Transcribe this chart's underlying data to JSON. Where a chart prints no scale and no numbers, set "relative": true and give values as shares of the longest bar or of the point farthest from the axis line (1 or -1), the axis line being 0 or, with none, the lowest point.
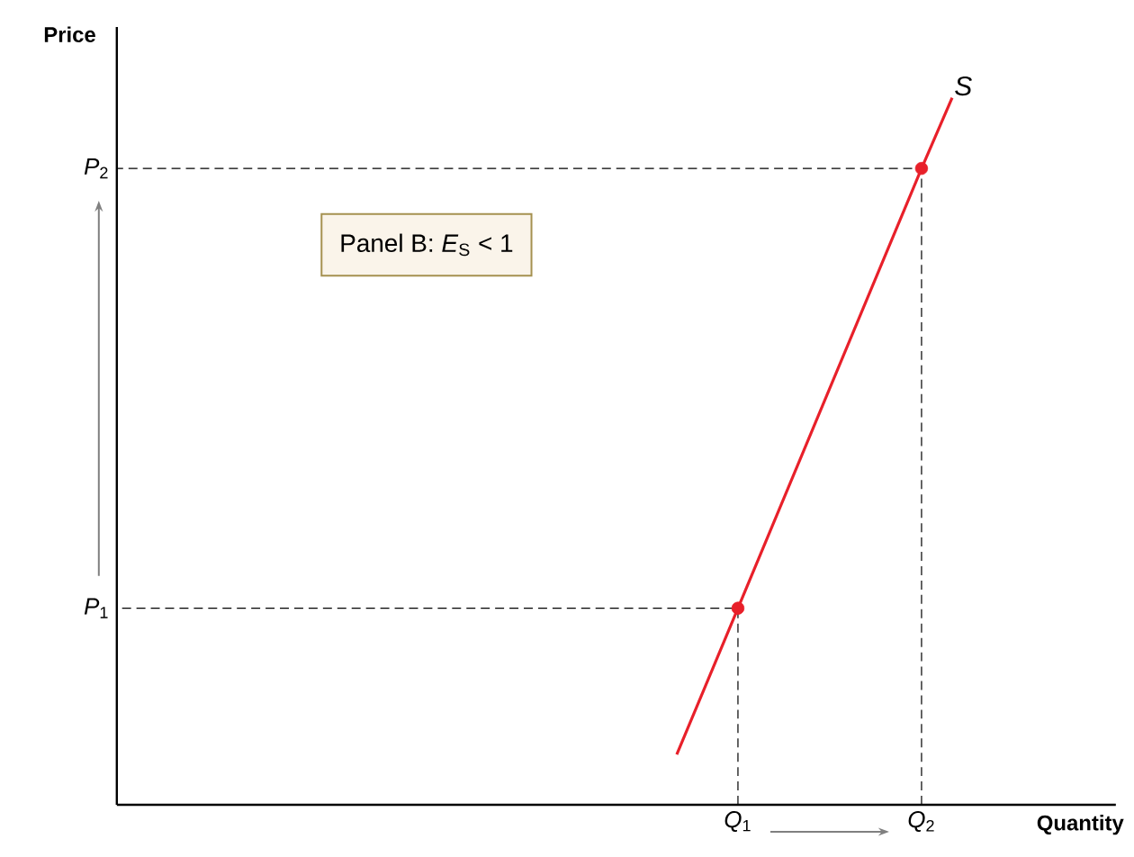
{
  "chart_data": {
    "type": "line",
    "xlabel": "Quantity",
    "ylabel": "Price",
    "relative": true,
    "annotations": [
      "Panel B: *E*$_{S}$ < 1",
      "*P*$_{1}$",
      "*P*$_{2}$"
    ],
    "categories": [
      null,
      null,
      null,
      null,
      null,
      null,
      null,
      null,
      null,
      null,
      null,
      null,
      null,
      null,
      null,
      null,
      null,
      null,
      null,
      null,
      "*Q*$_{1}$",
      null,
      null,
      null,
      null,
      null,
      "*Q*$_{2}$",
      null,
      null,
      null,
      null,
      null,
      null
    ],
    "series": [
      {
        "name": "S",
        "color": "#e8202a",
        "values": [
          null,
          null,
          null,
          null,
          null,
          null,
          null,
          null,
          null,
          null,
          null,
          null,
          null,
          null,
          null,
          null,
          null,
          null,
          0.071,
          null,
          0.278,
          null,
          null,
          null,
          null,
          null,
          0.9,
          1.0,
          null,
          null,
          null,
          null,
          null
        ]
      },
      {
        "type": "scatter",
        "color": "#e8202a",
        "values": [
          null,
          null,
          null,
          null,
          null,
          null,
          null,
          null,
          null,
          null,
          null,
          null,
          null,
          null,
          null,
          null,
          null,
          null,
          null,
          null,
          0.278,
          null,
          null,
          null,
          null,
          null,
          0.9,
          null,
          null,
          null,
          null,
          null,
          null
        ]
      }
    ]
  }
}
